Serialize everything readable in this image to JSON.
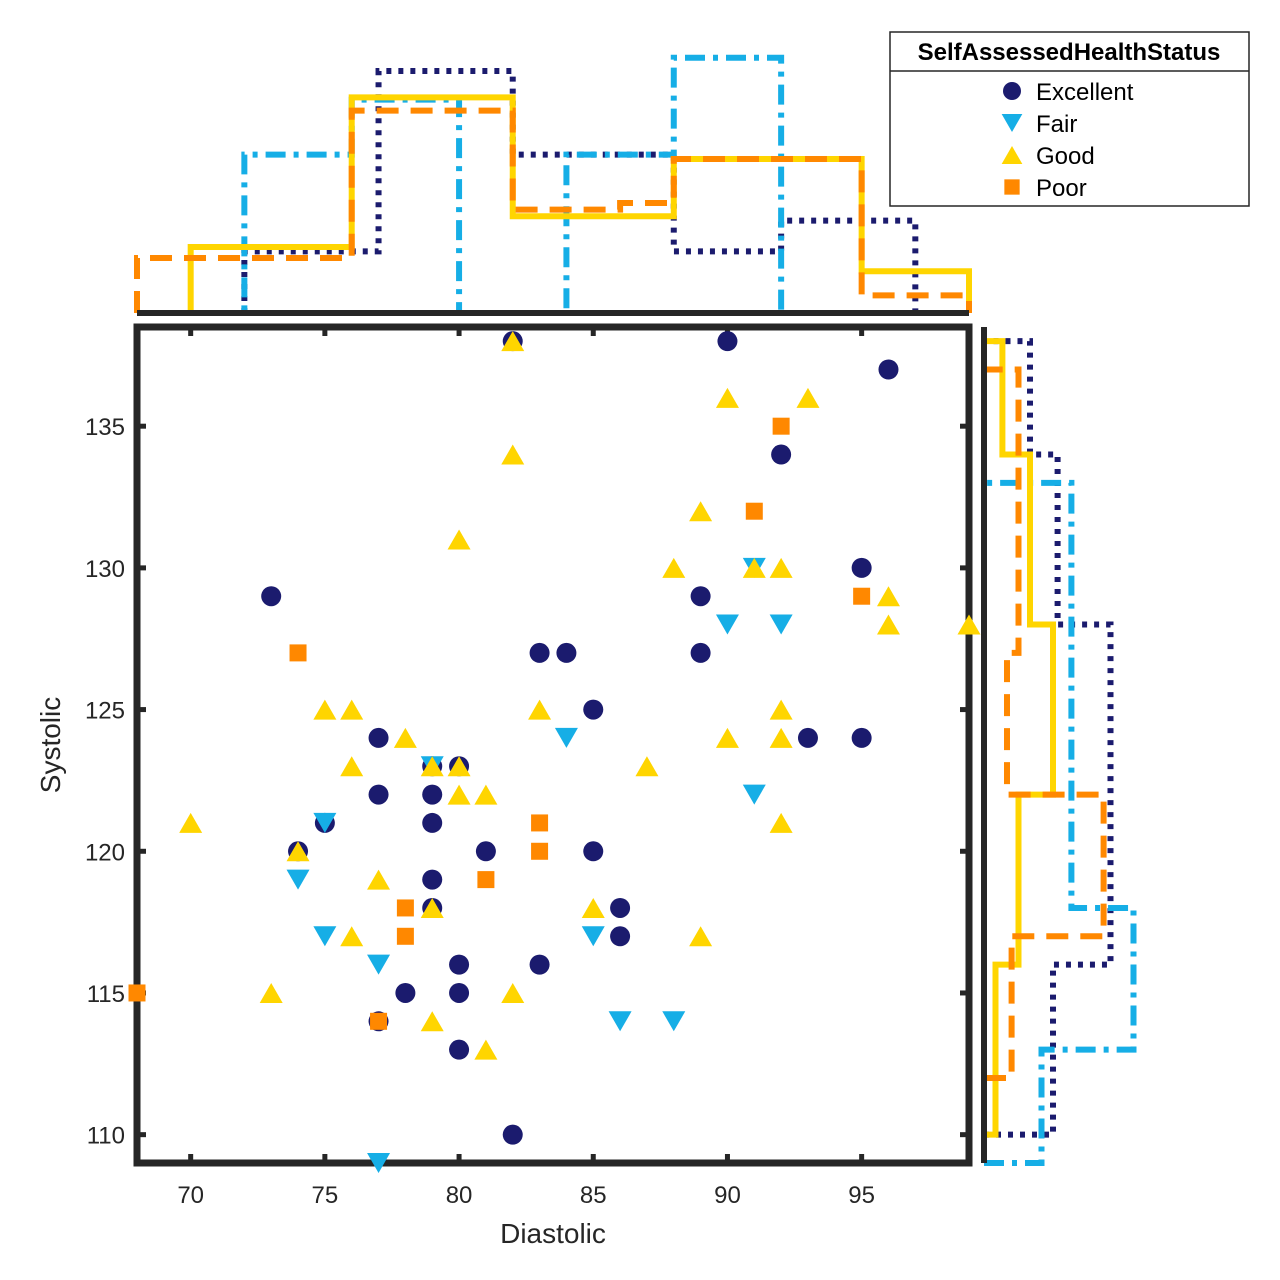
{
  "chart_data": {
    "type": "scatter",
    "xlabel": "Diastolic",
    "ylabel": "Systolic",
    "xlim": [
      68,
      99
    ],
    "ylim": [
      109,
      138.5
    ],
    "xticks": [
      70,
      75,
      80,
      85,
      90,
      95
    ],
    "yticks": [
      110,
      115,
      120,
      125,
      130,
      135
    ],
    "legend_title": "SelfAssessedHealthStatus",
    "legend_position": "top-right",
    "series": [
      {
        "name": "Excellent",
        "color": "#1b1b6e",
        "marker": "circle",
        "line_style": "dotted",
        "points": [
          [
            73,
            129
          ],
          [
            74,
            120
          ],
          [
            75,
            121
          ],
          [
            77,
            124
          ],
          [
            77,
            122
          ],
          [
            77,
            114
          ],
          [
            78,
            115
          ],
          [
            79,
            123
          ],
          [
            79,
            122
          ],
          [
            79,
            121
          ],
          [
            79,
            119
          ],
          [
            79,
            118
          ],
          [
            80,
            123
          ],
          [
            80,
            116
          ],
          [
            80,
            115
          ],
          [
            80,
            113
          ],
          [
            81,
            120
          ],
          [
            82,
            110
          ],
          [
            82,
            138
          ],
          [
            83,
            127
          ],
          [
            83,
            116
          ],
          [
            84,
            127
          ],
          [
            85,
            125
          ],
          [
            85,
            120
          ],
          [
            86,
            118
          ],
          [
            86,
            117
          ],
          [
            89,
            129
          ],
          [
            89,
            127
          ],
          [
            90,
            138
          ],
          [
            92,
            134
          ],
          [
            93,
            124
          ],
          [
            95,
            130
          ],
          [
            95,
            124
          ],
          [
            96,
            137
          ]
        ],
        "x_hist": {
          "edges": [
            72,
            77,
            82,
            88,
            92,
            97
          ],
          "heights": [
            0.28,
            1.1,
            0.72,
            0.28,
            0.42
          ]
        },
        "y_hist": {
          "edges": [
            110,
            116,
            128,
            134,
            138
          ],
          "heights": [
            0.3,
            0.55,
            0.32,
            0.2
          ]
        }
      },
      {
        "name": "Fair",
        "color": "#16aee6",
        "marker": "triangle-down",
        "line_style": "dashdot",
        "points": [
          [
            74,
            119
          ],
          [
            75,
            121
          ],
          [
            75,
            117
          ],
          [
            77,
            116
          ],
          [
            77,
            109
          ],
          [
            79,
            123
          ],
          [
            84,
            124
          ],
          [
            85,
            117
          ],
          [
            86,
            114
          ],
          [
            88,
            114
          ],
          [
            90,
            128
          ],
          [
            91,
            130
          ],
          [
            91,
            122
          ],
          [
            92,
            128
          ]
        ],
        "x_hist": {
          "edges": [
            68,
            72,
            76,
            80,
            84,
            88,
            92,
            99
          ],
          "heights": [
            0,
            0.72,
            0.97,
            0,
            0.72,
            1.16,
            0
          ]
        },
        "y_hist": {
          "edges": [
            109,
            113,
            118,
            133,
            138
          ],
          "heights": [
            0.25,
            0.65,
            0.38,
            0
          ]
        }
      },
      {
        "name": "Good",
        "color": "#ffd500",
        "marker": "triangle-up",
        "line_style": "solid",
        "points": [
          [
            70,
            121
          ],
          [
            73,
            115
          ],
          [
            74,
            120
          ],
          [
            75,
            125
          ],
          [
            76,
            125
          ],
          [
            76,
            123
          ],
          [
            76,
            117
          ],
          [
            77,
            119
          ],
          [
            78,
            124
          ],
          [
            79,
            123
          ],
          [
            79,
            118
          ],
          [
            79,
            114
          ],
          [
            80,
            131
          ],
          [
            80,
            123
          ],
          [
            80,
            122
          ],
          [
            81,
            122
          ],
          [
            81,
            113
          ],
          [
            82,
            138
          ],
          [
            82,
            134
          ],
          [
            82,
            115
          ],
          [
            83,
            125
          ],
          [
            85,
            118
          ],
          [
            87,
            123
          ],
          [
            88,
            130
          ],
          [
            89,
            132
          ],
          [
            89,
            117
          ],
          [
            90,
            136
          ],
          [
            90,
            124
          ],
          [
            91,
            130
          ],
          [
            92,
            130
          ],
          [
            92,
            125
          ],
          [
            92,
            124
          ],
          [
            92,
            121
          ],
          [
            93,
            136
          ],
          [
            96,
            129
          ],
          [
            96,
            128
          ],
          [
            99,
            128
          ]
        ],
        "x_hist": {
          "edges": [
            70,
            76,
            82,
            88,
            95,
            99
          ],
          "heights": [
            0.3,
            0.98,
            0.44,
            0.7,
            0.19
          ]
        },
        "y_hist": {
          "edges": [
            110,
            116,
            122,
            128,
            134,
            138
          ],
          "heights": [
            0.05,
            0.15,
            0.3,
            0.2,
            0.08
          ]
        }
      },
      {
        "name": "Poor",
        "color": "#ff8800",
        "marker": "square",
        "line_style": "dashed",
        "points": [
          [
            68,
            115
          ],
          [
            74,
            127
          ],
          [
            77,
            114
          ],
          [
            78,
            118
          ],
          [
            78,
            117
          ],
          [
            81,
            119
          ],
          [
            83,
            121
          ],
          [
            83,
            120
          ],
          [
            91,
            132
          ],
          [
            92,
            135
          ],
          [
            95,
            129
          ]
        ],
        "x_hist": {
          "edges": [
            68,
            76,
            82,
            86,
            88,
            95,
            99
          ],
          "heights": [
            0.25,
            0.92,
            0.47,
            0.5,
            0.7,
            0.08
          ]
        },
        "y_hist": {
          "edges": [
            112,
            117,
            122,
            127,
            137
          ],
          "heights": [
            0.12,
            0.52,
            0.1,
            0.15
          ]
        }
      }
    ]
  }
}
